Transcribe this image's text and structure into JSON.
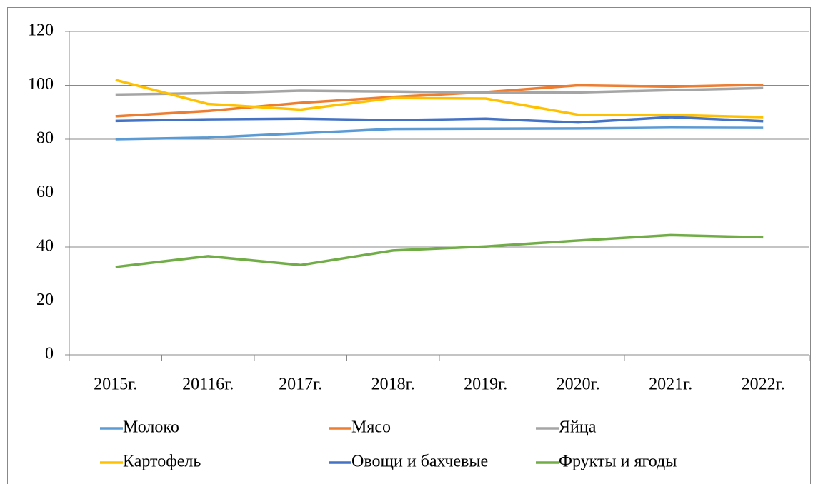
{
  "chart_data": {
    "type": "line",
    "categories": [
      "2015г.",
      "20116г.",
      "2017г.",
      "2018г.",
      "2019г.",
      "2020г.",
      "2021г.",
      "2022г."
    ],
    "series": [
      {
        "name": "Молоко",
        "color": "#5b9bd5",
        "values": [
          80,
          80.6,
          82.2,
          83.8,
          83.9,
          84,
          84.3,
          84.2
        ]
      },
      {
        "name": "Мясо",
        "color": "#ed7d31",
        "values": [
          88.5,
          90.5,
          93.5,
          95.7,
          97.5,
          100,
          99.5,
          100.2
        ]
      },
      {
        "name": "Яйца",
        "color": "#a5a5a5",
        "values": [
          96.6,
          97.1,
          98,
          97.7,
          97.2,
          97.4,
          98.2,
          99
        ]
      },
      {
        "name": "Картофель",
        "color": "#ffc000",
        "values": [
          102,
          93.1,
          91,
          95.3,
          95.1,
          89.1,
          89,
          88.2
        ]
      },
      {
        "name": "Овощи и бахчевые",
        "color": "#4472c4",
        "values": [
          86.8,
          87.4,
          87.6,
          87.1,
          87.6,
          86.2,
          88.2,
          86.7
        ]
      },
      {
        "name": "Фрукты и ягоды",
        "color": "#70ad47",
        "values": [
          32.6,
          36.6,
          33.3,
          38.7,
          40.2,
          42.4,
          44.4,
          43.6
        ]
      }
    ],
    "ylim": [
      0,
      120
    ],
    "yticks": [
      0,
      20,
      40,
      60,
      80,
      100,
      120
    ],
    "grid": true,
    "legend": "bottom"
  }
}
